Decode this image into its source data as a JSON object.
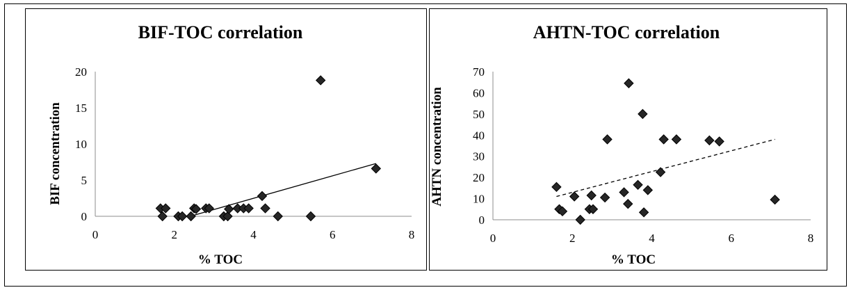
{
  "chart_data": [
    {
      "type": "scatter",
      "title": "BIF-TOC correlation",
      "xlabel": "% TOC",
      "ylabel": "BIF concentration",
      "xlim": [
        0,
        8
      ],
      "ylim": [
        0,
        20
      ],
      "xticks": [
        "0",
        "2",
        "4",
        "6",
        "8"
      ],
      "yticks": [
        "0",
        "5",
        "10",
        "15",
        "20"
      ],
      "marker": "diamond",
      "grid": false,
      "legend": "none",
      "points": [
        {
          "x": 1.65,
          "y": 1.1
        },
        {
          "x": 1.7,
          "y": 0.0
        },
        {
          "x": 1.78,
          "y": 1.1
        },
        {
          "x": 2.1,
          "y": 0.0
        },
        {
          "x": 2.2,
          "y": 0.0
        },
        {
          "x": 2.42,
          "y": 0.0
        },
        {
          "x": 2.5,
          "y": 1.1
        },
        {
          "x": 2.55,
          "y": 1.0
        },
        {
          "x": 2.8,
          "y": 1.1
        },
        {
          "x": 2.88,
          "y": 1.1
        },
        {
          "x": 3.25,
          "y": 0.0
        },
        {
          "x": 3.35,
          "y": 0.0
        },
        {
          "x": 3.38,
          "y": 1.0
        },
        {
          "x": 3.6,
          "y": 1.1
        },
        {
          "x": 3.75,
          "y": 1.1
        },
        {
          "x": 3.88,
          "y": 1.1
        },
        {
          "x": 4.22,
          "y": 2.8
        },
        {
          "x": 4.3,
          "y": 1.1
        },
        {
          "x": 4.62,
          "y": 0.0
        },
        {
          "x": 5.45,
          "y": 0.0
        },
        {
          "x": 5.7,
          "y": 18.8
        },
        {
          "x": 7.1,
          "y": 6.6
        }
      ],
      "trendline": {
        "style": "solid",
        "x": [
          2.4,
          7.1
        ],
        "y": [
          0.0,
          7.3
        ]
      }
    },
    {
      "type": "scatter",
      "title": "AHTN-TOC correlation",
      "xlabel": "% TOC",
      "ylabel": "AHTN concentration",
      "xlim": [
        0,
        8
      ],
      "ylim": [
        0,
        70
      ],
      "xticks": [
        "0",
        "2",
        "4",
        "6",
        "8"
      ],
      "yticks": [
        "0",
        "10",
        "20",
        "30",
        "40",
        "50",
        "60",
        "70"
      ],
      "marker": "diamond",
      "grid": false,
      "legend": "none",
      "points": [
        {
          "x": 1.6,
          "y": 15.5
        },
        {
          "x": 1.67,
          "y": 5.0
        },
        {
          "x": 1.75,
          "y": 4.0
        },
        {
          "x": 2.05,
          "y": 11.0
        },
        {
          "x": 2.2,
          "y": 0.0
        },
        {
          "x": 2.43,
          "y": 5.0
        },
        {
          "x": 2.48,
          "y": 11.5
        },
        {
          "x": 2.52,
          "y": 5.0
        },
        {
          "x": 2.82,
          "y": 10.5
        },
        {
          "x": 2.88,
          "y": 38.0
        },
        {
          "x": 3.3,
          "y": 13.0
        },
        {
          "x": 3.4,
          "y": 7.5
        },
        {
          "x": 3.42,
          "y": 64.5
        },
        {
          "x": 3.65,
          "y": 16.5
        },
        {
          "x": 3.77,
          "y": 50.0
        },
        {
          "x": 3.8,
          "y": 3.5
        },
        {
          "x": 3.9,
          "y": 14.0
        },
        {
          "x": 4.22,
          "y": 22.5
        },
        {
          "x": 4.3,
          "y": 38.0
        },
        {
          "x": 4.62,
          "y": 38.0
        },
        {
          "x": 5.45,
          "y": 37.5
        },
        {
          "x": 5.7,
          "y": 37.0
        },
        {
          "x": 7.1,
          "y": 9.5
        }
      ],
      "trendline": {
        "style": "dashed",
        "x": [
          1.6,
          7.1
        ],
        "y": [
          11.0,
          38.0
        ]
      }
    }
  ]
}
